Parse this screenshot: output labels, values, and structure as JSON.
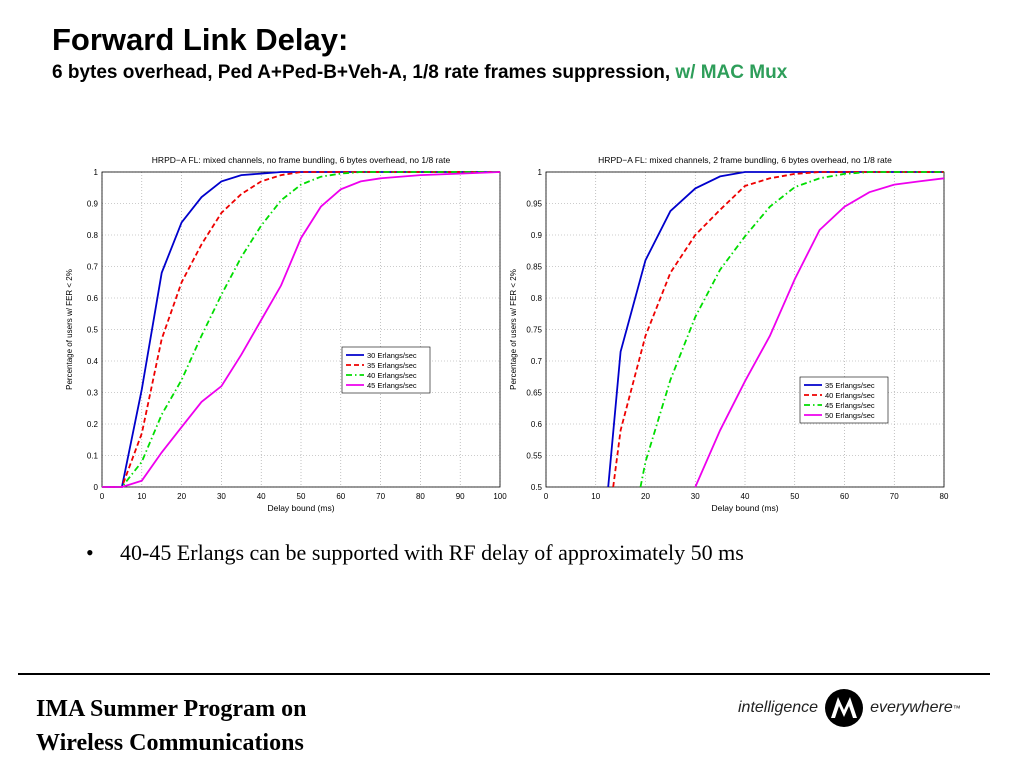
{
  "slide": {
    "title": "Forward Link Delay:",
    "subtitle_main": "6 bytes overhead, Ped A+Ped-B+Veh-A, 1/8 rate frames suppression, ",
    "subtitle_accent": "w/ MAC Mux",
    "bullet": "40-45 Erlangs can be supported with RF delay of approximately 50 ms",
    "footer_line1": "IMA Summer Program on",
    "footer_line2": "Wireless Communications",
    "logo_left": "intelligence",
    "logo_right": "everywhere",
    "logo_tm": "™"
  },
  "chart_data": [
    {
      "type": "line",
      "title": "HRPD−A FL: mixed channels, no frame bundling, 6 bytes overhead, no 1/8 rate",
      "xlabel": "Delay bound (ms)",
      "ylabel": "Percentage of users w/ FER < 2%",
      "xlim": [
        0,
        100
      ],
      "ylim": [
        0,
        1
      ],
      "xticks": [
        0,
        10,
        20,
        30,
        40,
        50,
        60,
        70,
        80,
        90,
        100
      ],
      "yticks": [
        0,
        0.1,
        0.2,
        0.3,
        0.4,
        0.5,
        0.6,
        0.7,
        0.8,
        0.9,
        1
      ],
      "grid": true,
      "legend_position": "lower-right",
      "series": [
        {
          "name": "30 Erlangs/sec",
          "color": "#0000cc",
          "dash": "solid",
          "x": [
            0,
            5,
            10,
            15,
            20,
            25,
            30,
            35,
            40,
            45,
            50,
            100
          ],
          "y": [
            0,
            0,
            0.31,
            0.68,
            0.84,
            0.92,
            0.97,
            0.99,
            0.995,
            1,
            1,
            1
          ]
        },
        {
          "name": "35 Erlangs/sec",
          "color": "#ee0000",
          "dash": "dashed",
          "x": [
            0,
            5,
            10,
            15,
            20,
            25,
            30,
            35,
            40,
            45,
            50,
            55,
            100
          ],
          "y": [
            0,
            0,
            0.17,
            0.47,
            0.65,
            0.77,
            0.87,
            0.93,
            0.97,
            0.99,
            1,
            1,
            1
          ]
        },
        {
          "name": "40 Erlangs/sec",
          "color": "#00dd00",
          "dash": "dashdot",
          "x": [
            0,
            5,
            10,
            15,
            20,
            25,
            30,
            35,
            40,
            45,
            50,
            55,
            60,
            65,
            100
          ],
          "y": [
            0,
            0,
            0.08,
            0.23,
            0.34,
            0.48,
            0.61,
            0.73,
            0.83,
            0.91,
            0.96,
            0.985,
            0.995,
            1,
            1
          ]
        },
        {
          "name": "45 Erlangs/sec",
          "color": "#ee00ee",
          "dash": "solid",
          "x": [
            0,
            5,
            10,
            15,
            20,
            25,
            30,
            35,
            40,
            45,
            50,
            55,
            60,
            65,
            70,
            80,
            90,
            100
          ],
          "y": [
            0,
            0,
            0.02,
            0.11,
            0.19,
            0.27,
            0.32,
            0.42,
            0.53,
            0.64,
            0.79,
            0.89,
            0.945,
            0.97,
            0.98,
            0.99,
            0.995,
            1
          ]
        }
      ]
    },
    {
      "type": "line",
      "title": "HRPD−A FL: mixed channels, 2 frame bundling, 6 bytes overhead, no 1/8 rate",
      "xlabel": "Delay bound (ms)",
      "ylabel": "Percentage of users w/ FER < 2%",
      "xlim": [
        0,
        80
      ],
      "ylim": [
        0.5,
        1
      ],
      "xticks": [
        0,
        10,
        20,
        30,
        40,
        50,
        60,
        70,
        80
      ],
      "yticks": [
        0.5,
        0.55,
        0.6,
        0.65,
        0.7,
        0.75,
        0.8,
        0.85,
        0.9,
        0.95,
        1
      ],
      "grid": true,
      "legend_position": "lower-right",
      "series": [
        {
          "name": "35 Erlangs/sec",
          "color": "#0000cc",
          "dash": "solid",
          "x": [
            12.5,
            15,
            20,
            25,
            30,
            35,
            40,
            45,
            80
          ],
          "y": [
            0.5,
            0.715,
            0.86,
            0.938,
            0.974,
            0.993,
            1,
            1,
            1
          ]
        },
        {
          "name": "40 Erlangs/sec",
          "color": "#ee0000",
          "dash": "dashed",
          "x": [
            13.5,
            15,
            20,
            25,
            30,
            35,
            40,
            45,
            50,
            55,
            80
          ],
          "y": [
            0.5,
            0.59,
            0.74,
            0.84,
            0.9,
            0.94,
            0.978,
            0.99,
            0.997,
            1,
            1
          ]
        },
        {
          "name": "45 Erlangs/sec",
          "color": "#00dd00",
          "dash": "dashdot",
          "x": [
            19,
            20,
            25,
            30,
            35,
            40,
            45,
            50,
            55,
            60,
            65,
            70,
            80
          ],
          "y": [
            0.5,
            0.54,
            0.67,
            0.77,
            0.845,
            0.898,
            0.945,
            0.976,
            0.99,
            0.997,
            1,
            1,
            1
          ]
        },
        {
          "name": "50 Erlangs/sec",
          "color": "#ee00ee",
          "dash": "solid",
          "x": [
            30,
            35,
            40,
            45,
            50,
            55,
            60,
            65,
            70,
            75,
            80
          ],
          "y": [
            0.5,
            0.59,
            0.668,
            0.74,
            0.83,
            0.908,
            0.945,
            0.968,
            0.98,
            0.985,
            0.99
          ]
        }
      ]
    }
  ]
}
